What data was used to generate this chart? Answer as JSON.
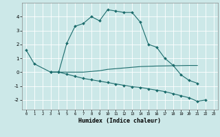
{
  "xlabel": "Humidex (Indice chaleur)",
  "x": [
    0,
    1,
    2,
    3,
    4,
    5,
    6,
    7,
    8,
    9,
    10,
    11,
    12,
    13,
    14,
    15,
    16,
    17,
    18,
    19,
    20,
    21,
    22,
    23
  ],
  "line1": [
    1.6,
    0.6,
    null,
    0.0,
    0.0,
    2.1,
    3.3,
    3.5,
    4.0,
    3.7,
    4.5,
    4.4,
    4.3,
    4.3,
    3.6,
    2.0,
    1.8,
    1.0,
    0.5,
    -0.2,
    -0.6,
    -0.8,
    null,
    null
  ],
  "line2": [
    null,
    null,
    null,
    0.0,
    0.0,
    0.0,
    0.0,
    0.0,
    0.05,
    0.1,
    0.2,
    0.25,
    0.3,
    0.35,
    0.4,
    0.42,
    0.44,
    0.45,
    0.46,
    0.47,
    0.48,
    0.48,
    null,
    null
  ],
  "line3": [
    null,
    null,
    null,
    0.0,
    0.0,
    -0.15,
    -0.3,
    -0.45,
    -0.55,
    -0.65,
    -0.75,
    -0.85,
    -0.95,
    -1.05,
    -1.1,
    -1.2,
    -1.3,
    -1.4,
    -1.55,
    -1.7,
    -1.85,
    -2.1,
    -2.0,
    null
  ],
  "bg_color": "#cce8e8",
  "line_color": "#1a6b6b",
  "grid_color": "#ffffff",
  "ylim": [
    -2.7,
    5.0
  ],
  "xlim": [
    -0.5,
    23.5
  ],
  "yticks": [
    -2,
    -1,
    0,
    1,
    2,
    3,
    4
  ],
  "xticks": [
    0,
    1,
    2,
    3,
    4,
    5,
    6,
    7,
    8,
    9,
    10,
    11,
    12,
    13,
    14,
    15,
    16,
    17,
    18,
    19,
    20,
    21,
    22,
    23
  ]
}
